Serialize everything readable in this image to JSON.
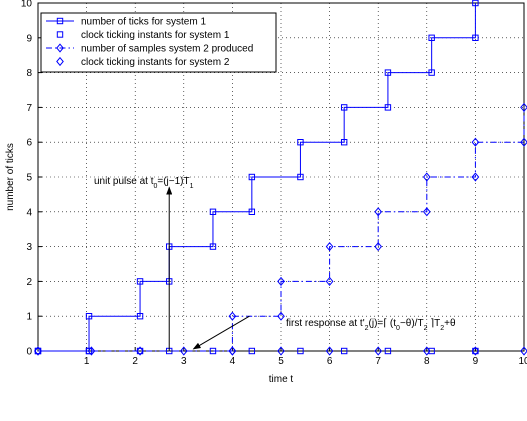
{
  "chart_data": {
    "type": "line",
    "title": "",
    "xlabel": "time t",
    "ylabel": "number of ticks",
    "xlim": [
      0,
      10
    ],
    "ylim": [
      0,
      10
    ],
    "xticks": [
      1,
      2,
      3,
      4,
      5,
      6,
      7,
      8,
      9,
      10
    ],
    "yticks": [
      0,
      1,
      2,
      3,
      4,
      5,
      6,
      7,
      8,
      9,
      10
    ],
    "grid": true,
    "legend_position": "top-left",
    "line_color": "#0000ff",
    "series": [
      {
        "name": "number of ticks for system 1",
        "style": "solid-step",
        "marker": "square",
        "step_times": [
          0,
          1.05,
          2.1,
          2.7,
          3.6,
          4.4,
          5.4,
          6.3,
          7.2,
          8.1,
          9.0
        ],
        "values": [
          0,
          1,
          2,
          3,
          4,
          5,
          6,
          7,
          8,
          9,
          10
        ]
      },
      {
        "name": "clock ticking instants for system 1",
        "style": "markers",
        "marker": "square",
        "x": [
          0,
          1.05,
          2.1,
          2.7,
          3.6,
          4.4,
          5.4,
          6.3,
          7.2,
          8.1,
          9.0
        ],
        "y": [
          0,
          0,
          0,
          0,
          0,
          0,
          0,
          0,
          0,
          0,
          0
        ]
      },
      {
        "name": "number of samples system 2 produced",
        "style": "dashdot-step",
        "marker": "diamond",
        "step_times": [
          0,
          4.0,
          5.0,
          6.0,
          7.0,
          8.0,
          9.0,
          10.0
        ],
        "values": [
          0,
          1,
          2,
          3,
          4,
          5,
          6,
          7
        ]
      },
      {
        "name": "clock ticking instants for system 2",
        "style": "markers",
        "marker": "diamond",
        "x": [
          0,
          1.1,
          2.1,
          3.0,
          4.0,
          5.0,
          6.0,
          7.0,
          8.0,
          9.0,
          10.0
        ],
        "y": [
          0,
          0,
          0,
          0,
          0,
          0,
          0,
          0,
          0,
          0,
          0
        ]
      }
    ],
    "annotations": [
      {
        "id": "pulse",
        "text": "unit pulse at t",
        "sub": "0",
        "text2": "=(j−1)T",
        "sub2": "1",
        "arrow_from": [
          2.7,
          0
        ],
        "arrow_to": [
          2.7,
          4.7
        ]
      },
      {
        "id": "response",
        "text": "first response at t'",
        "sub": "2",
        "text2": "(j)=⌈ (t",
        "sub2": "0",
        "text3": "−θ)/T",
        "sub3": "2",
        "text4": " ⌉T",
        "sub4": "2",
        "text5": "+θ",
        "arrow_from": [
          4.35,
          1.0
        ],
        "arrow_to": [
          3.2,
          0.06
        ]
      }
    ]
  }
}
